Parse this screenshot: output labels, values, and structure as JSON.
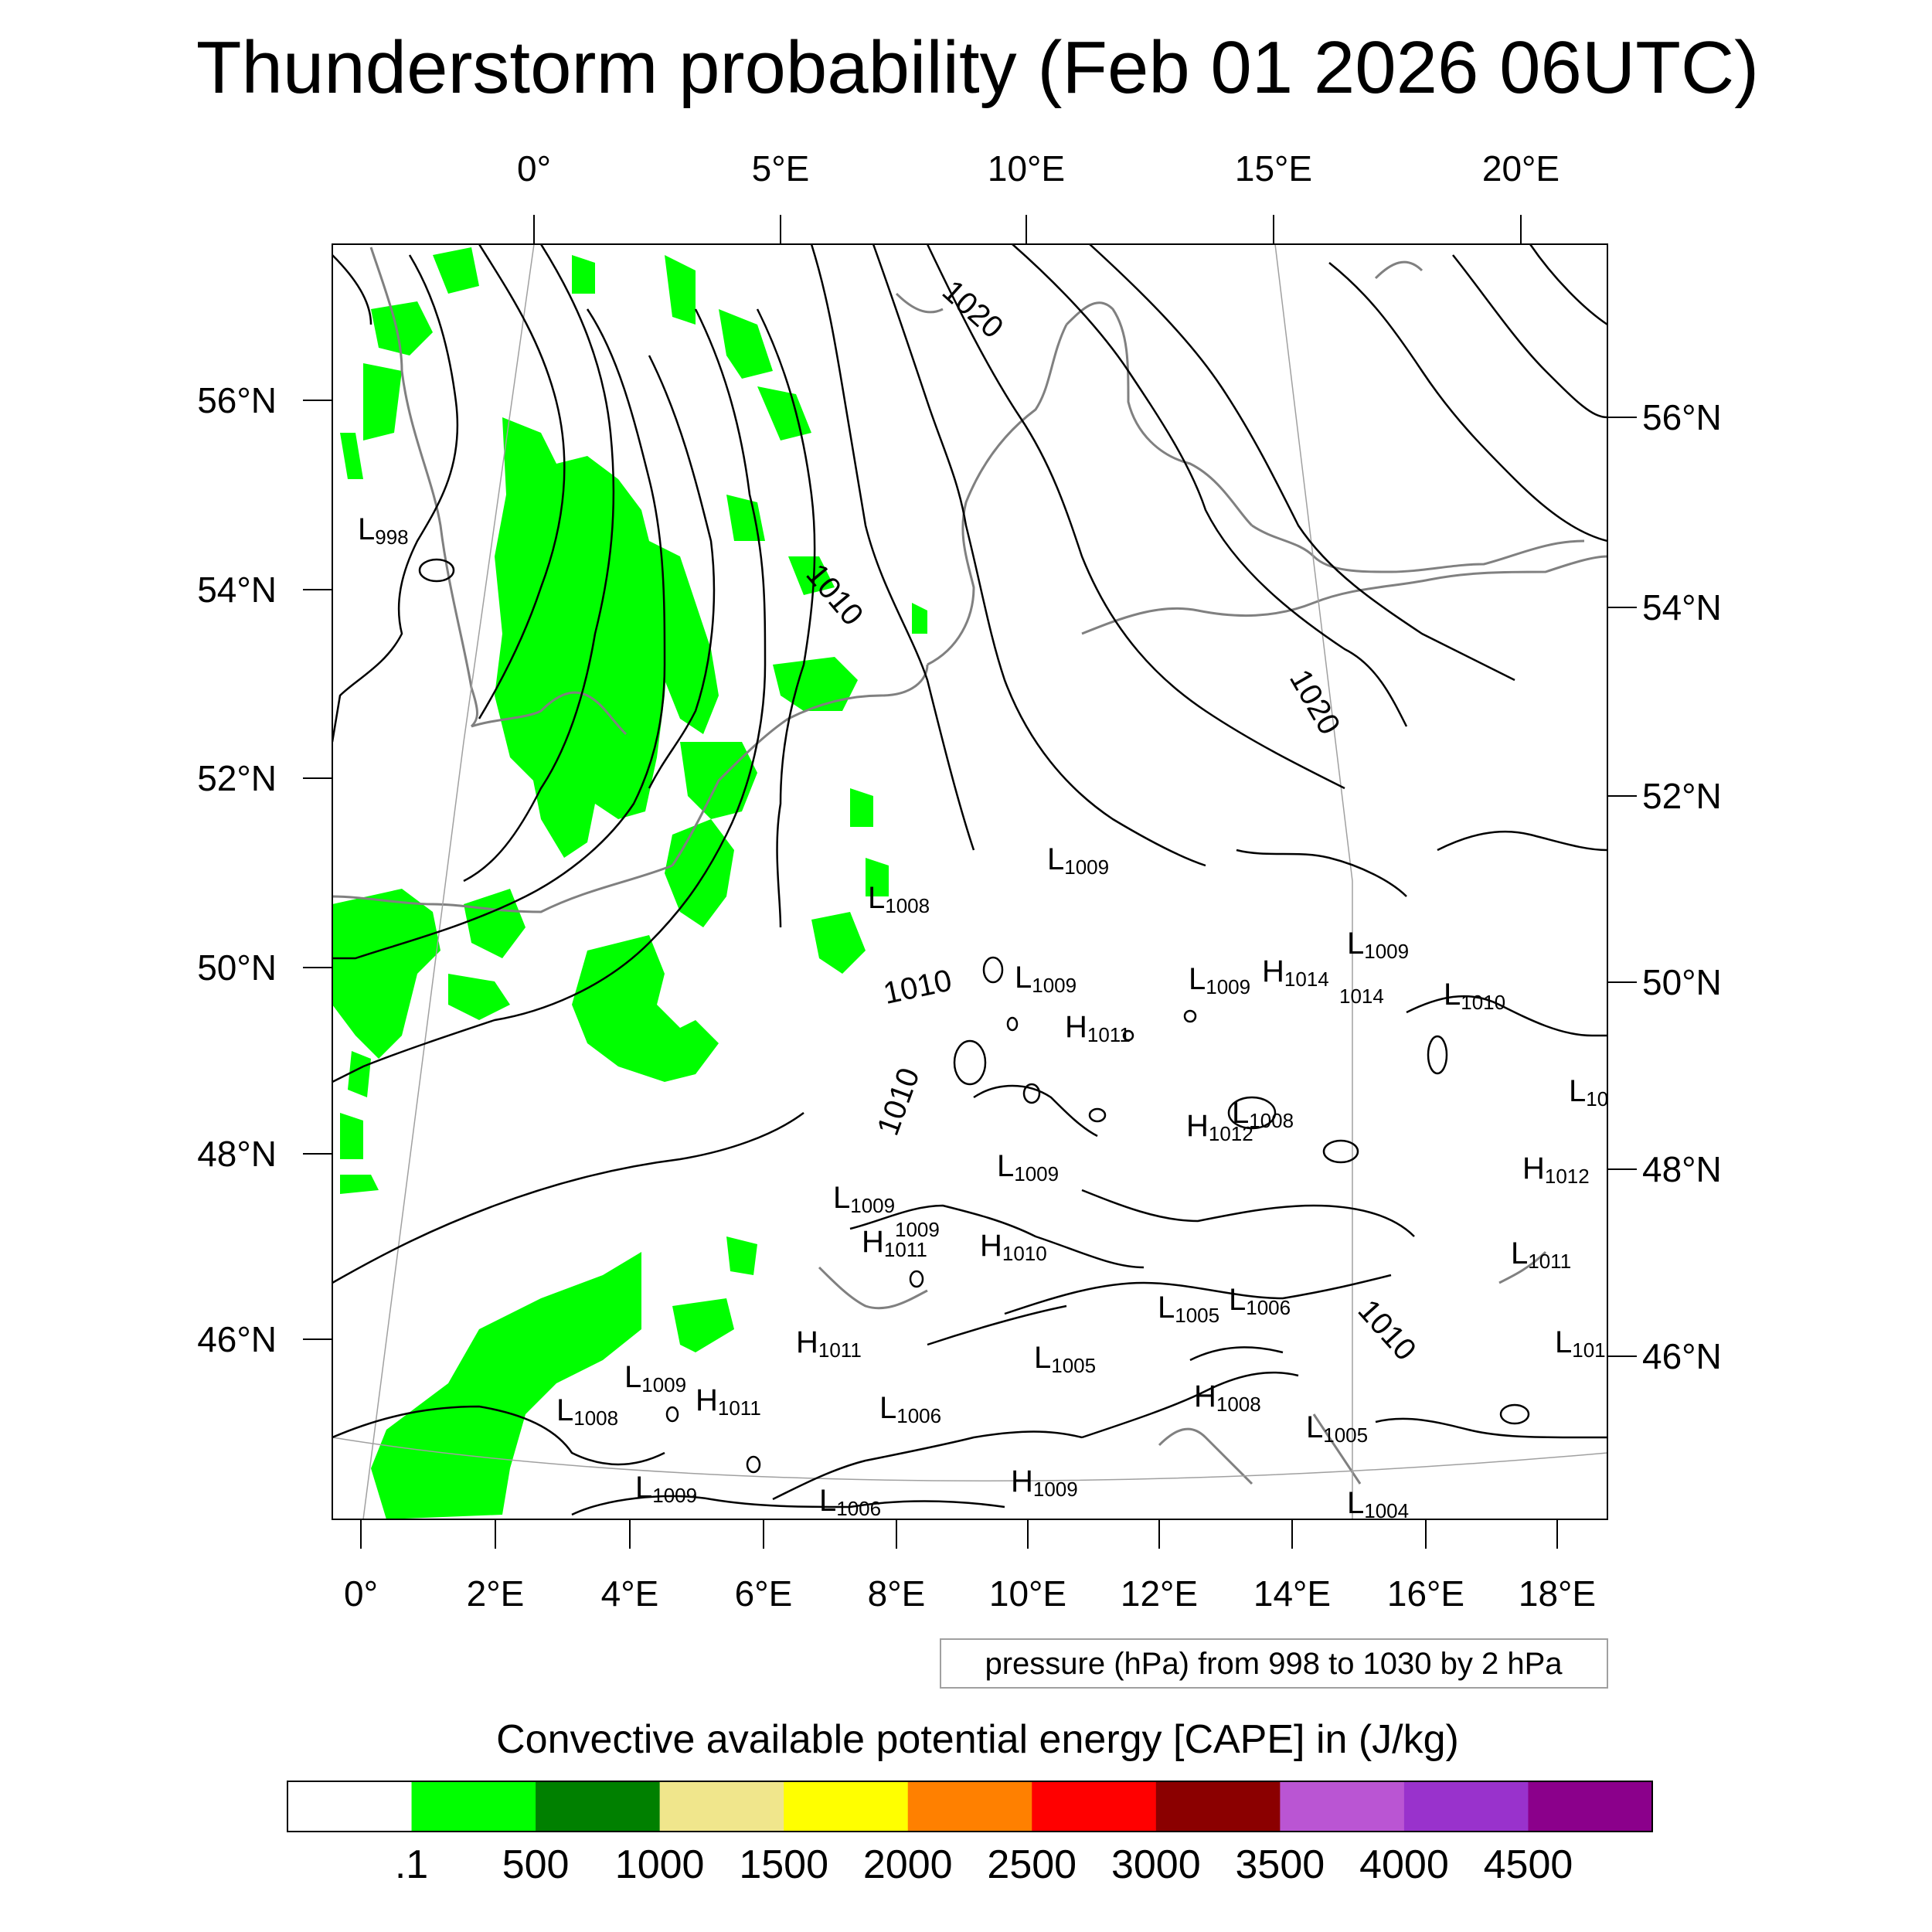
{
  "title": "Thunderstorm probability (Feb 01 2026 06UTC)",
  "top_lon_labels": [
    "0°",
    "5°E",
    "10°E",
    "15°E",
    "20°E"
  ],
  "bottom_lon_labels": [
    "0°",
    "2°E",
    "4°E",
    "6°E",
    "8°E",
    "10°E",
    "12°E",
    "14°E",
    "16°E",
    "18°E"
  ],
  "left_lat_labels": [
    "56°N",
    "54°N",
    "52°N",
    "50°N",
    "48°N",
    "46°N"
  ],
  "right_lat_labels": [
    "56°N",
    "54°N",
    "52°N",
    "50°N",
    "48°N",
    "46°N"
  ],
  "contour_labels": [
    "1020",
    "1010",
    "1010",
    "1010",
    "1020",
    "1010"
  ],
  "pressure_centers": [
    {
      "t": "L",
      "v": "998"
    },
    {
      "t": "L",
      "v": "1009"
    },
    {
      "t": "L",
      "v": "1008"
    },
    {
      "t": "L",
      "v": "1009"
    },
    {
      "t": "L",
      "v": "1009"
    },
    {
      "t": "H",
      "v": "1014"
    },
    {
      "t": "L",
      "v": "1009"
    },
    {
      "t": "",
      "v": "1014"
    },
    {
      "t": "L",
      "v": "1010"
    },
    {
      "t": "H",
      "v": "1011"
    },
    {
      "t": "L",
      "v": "1008"
    },
    {
      "t": "H",
      "v": "1012"
    },
    {
      "t": "L",
      "v": "10"
    },
    {
      "t": "L",
      "v": "1009"
    },
    {
      "t": "H",
      "v": "1012"
    },
    {
      "t": "L",
      "v": "1009"
    },
    {
      "t": "",
      "v": "1009"
    },
    {
      "t": "H",
      "v": "1011"
    },
    {
      "t": "H",
      "v": "1010"
    },
    {
      "t": "L",
      "v": "1011"
    },
    {
      "t": "L",
      "v": "1005"
    },
    {
      "t": "L",
      "v": "1006"
    },
    {
      "t": "H",
      "v": "1011"
    },
    {
      "t": "L",
      "v": "101"
    },
    {
      "t": "L",
      "v": "1009"
    },
    {
      "t": "L",
      "v": "1005"
    },
    {
      "t": "H",
      "v": "1011"
    },
    {
      "t": "L",
      "v": "1008"
    },
    {
      "t": "L",
      "v": "1006"
    },
    {
      "t": "H",
      "v": "1008"
    },
    {
      "t": "L",
      "v": "1005"
    },
    {
      "t": "L",
      "v": "1009"
    },
    {
      "t": "H",
      "v": "1009"
    },
    {
      "t": "L",
      "v": "1006"
    },
    {
      "t": "L",
      "v": "1004"
    }
  ],
  "contour_note": "pressure (hPa) from 998 to 1030 by 2 hPa",
  "colorbar": {
    "title": "Convective available potential energy [CAPE] in (J/kg)",
    "colors": [
      "#ffffff",
      "#00ff00",
      "#008000",
      "#f0e68c",
      "#ffff00",
      "#ff8000",
      "#ff0000",
      "#8b0000",
      "#ba55d3",
      "#9932cc",
      "#8b008b"
    ],
    "labels": [
      ".1",
      "500",
      "1000",
      "1500",
      "2000",
      "2500",
      "3000",
      "3500",
      "4000",
      "4500"
    ]
  },
  "map_colors": {
    "cape_fill": "#00ff00",
    "coast": "#808080",
    "contour": "#000000",
    "grid": "#a0a0a0"
  }
}
